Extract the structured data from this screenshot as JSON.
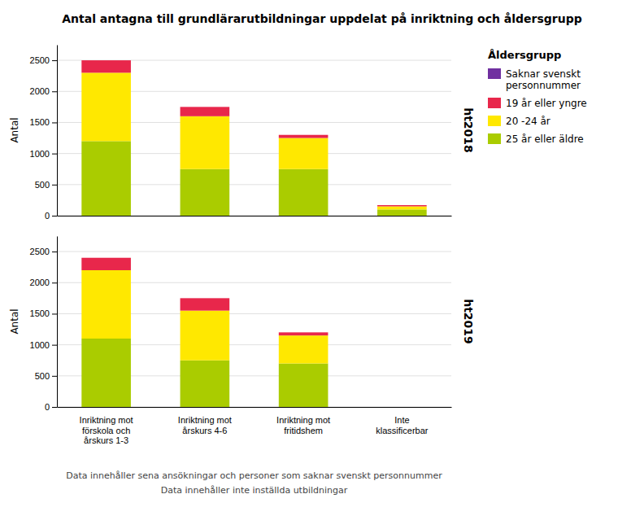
{
  "chart_data": [
    {
      "type": "bar",
      "stacked": true,
      "title": "Antal antagna till grundlärarutbildningar uppdelat på inriktning och åldersgrupp",
      "subtitle": "ht2018",
      "categories": [
        "Inriktning mot\nförskola och\nårskurs 1-3",
        "Inriktning mot\nårskurs 4-6",
        "Inriktning mot\nfritidshem",
        "Inte\nklassificerbar"
      ],
      "series": [
        {
          "name": "25 år eller äldre",
          "color": "#AACC00",
          "values": [
            1200,
            750,
            750,
            100
          ]
        },
        {
          "name": "20 -24 år",
          "color": "#FFE800",
          "values": [
            1100,
            850,
            500,
            50
          ]
        },
        {
          "name": "19 år eller yngre",
          "color": "#E8274B",
          "values": [
            200,
            150,
            50,
            20
          ]
        },
        {
          "name": "Saknar svenskt\npersonnummer",
          "color": "#7030A0",
          "values": [
            0,
            0,
            0,
            0
          ]
        }
      ],
      "ylabel": "Antal",
      "ylim": [
        0,
        2750
      ],
      "yticks": [
        0,
        500,
        1000,
        1500,
        2000,
        2500
      ],
      "grid": true,
      "tick_labels": "y",
      "legend": "upper right",
      "legend_title": "Åldersgrupp"
    },
    {
      "type": "bar",
      "stacked": true,
      "subtitle": "ht2019",
      "categories": [
        "Inriktning mot\nförskola och\nårskurs 1-3",
        "Inriktning mot\nårskurs 4-6",
        "Inriktning mot\nfritidshem",
        "Inte\nklassificerbar"
      ],
      "series": [
        {
          "color": "#AACC00",
          "values": [
            1100,
            750,
            700,
            0
          ]
        },
        {
          "color": "#FFE800",
          "values": [
            1100,
            800,
            450,
            0
          ]
        },
        {
          "color": "#E8274B",
          "values": [
            200,
            200,
            50,
            0
          ]
        },
        {
          "color": "#7030A0",
          "values": [
            0,
            0,
            0,
            0
          ]
        }
      ],
      "ylabel": "Antal",
      "ylim": [
        0,
        2750
      ],
      "yticks": [
        0,
        500,
        1000,
        1500,
        2000,
        2500
      ],
      "grid": true,
      "annotations": [
        "Data innehåller sena ansökningar och personer som saknar svenskt personnummer",
        "Data innehåller inte inställda utbildningar"
      ]
    }
  ]
}
